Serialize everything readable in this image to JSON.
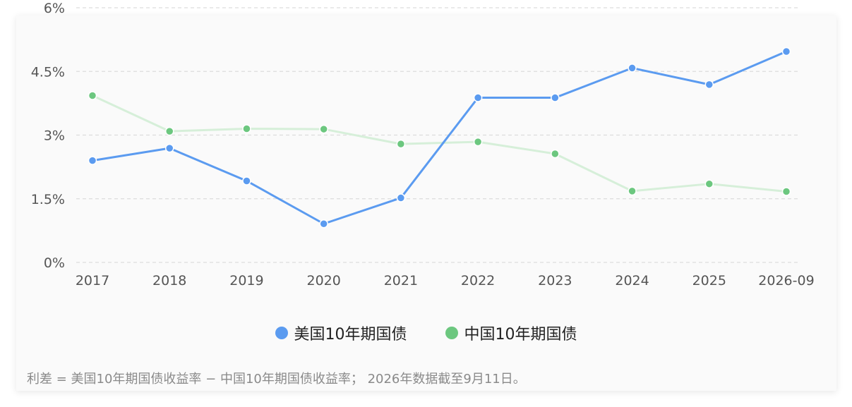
{
  "chart_data": {
    "type": "line",
    "categories": [
      "2017",
      "2018",
      "2019",
      "2020",
      "2021",
      "2022",
      "2023",
      "2024",
      "2025",
      "2026-09"
    ],
    "series": [
      {
        "name": "美国10年期国债",
        "color": "#5b9bf0",
        "values": [
          2.4,
          2.69,
          1.92,
          0.91,
          1.52,
          3.88,
          3.88,
          4.58,
          4.19,
          4.97
        ]
      },
      {
        "name": "中国10年期国债",
        "color": "#6cc77f",
        "line_color": "#d6efd9",
        "values": [
          3.93,
          3.09,
          3.15,
          3.14,
          2.79,
          2.84,
          2.56,
          1.68,
          1.85,
          1.67
        ]
      }
    ],
    "y_ticks": [
      {
        "value": 6,
        "label": "6%"
      },
      {
        "value": 4.5,
        "label": "4.5%"
      },
      {
        "value": 3,
        "label": "3%"
      },
      {
        "value": 1.5,
        "label": "1.5%"
      },
      {
        "value": 0,
        "label": "0%"
      }
    ],
    "ylim": [
      0,
      6
    ],
    "grid": true,
    "legend_position": "bottom",
    "title": "",
    "xlabel": "",
    "ylabel": ""
  },
  "footnote": "利差 = 美国10年期国债收益率 − 中国10年期国债收益率；  2026年数据截至9月11日。"
}
